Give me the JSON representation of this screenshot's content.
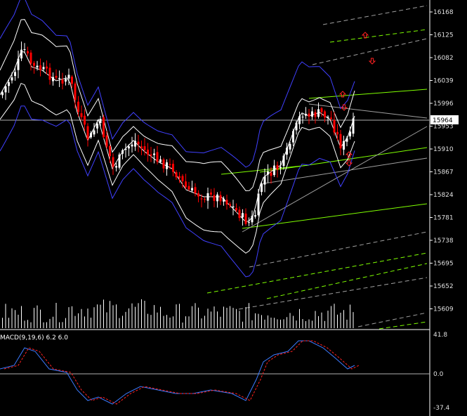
{
  "chart_data": {
    "type": "candlestick",
    "price_axis": {
      "ticks": [
        "16168",
        "16125",
        "16082",
        "16039",
        "15996",
        "15953",
        "15910",
        "15867",
        "15824",
        "15781",
        "15738",
        "15695",
        "15652",
        "15609"
      ],
      "range": [
        15580,
        16185
      ],
      "current_price_label": "15964",
      "current_price": 15964
    },
    "macd": {
      "label": "MACD(9,19,6) 6.2 6.0",
      "ticks": [
        "41.8",
        "0.0",
        "-37.4"
      ],
      "range": [
        -45,
        45
      ]
    },
    "colors": {
      "bull_candle": "#ffffff",
      "bear_candle": "#ff0000",
      "bollinger_inner": "#ffffff",
      "bollinger_outer": "#4040ff",
      "channel_green": "#7fff00",
      "channel_gray": "#a0a0a0",
      "macd_main": "#3b7bff",
      "macd_signal": "#ff2020",
      "arrow": "#ff2020",
      "volume": "#ffffff"
    }
  }
}
